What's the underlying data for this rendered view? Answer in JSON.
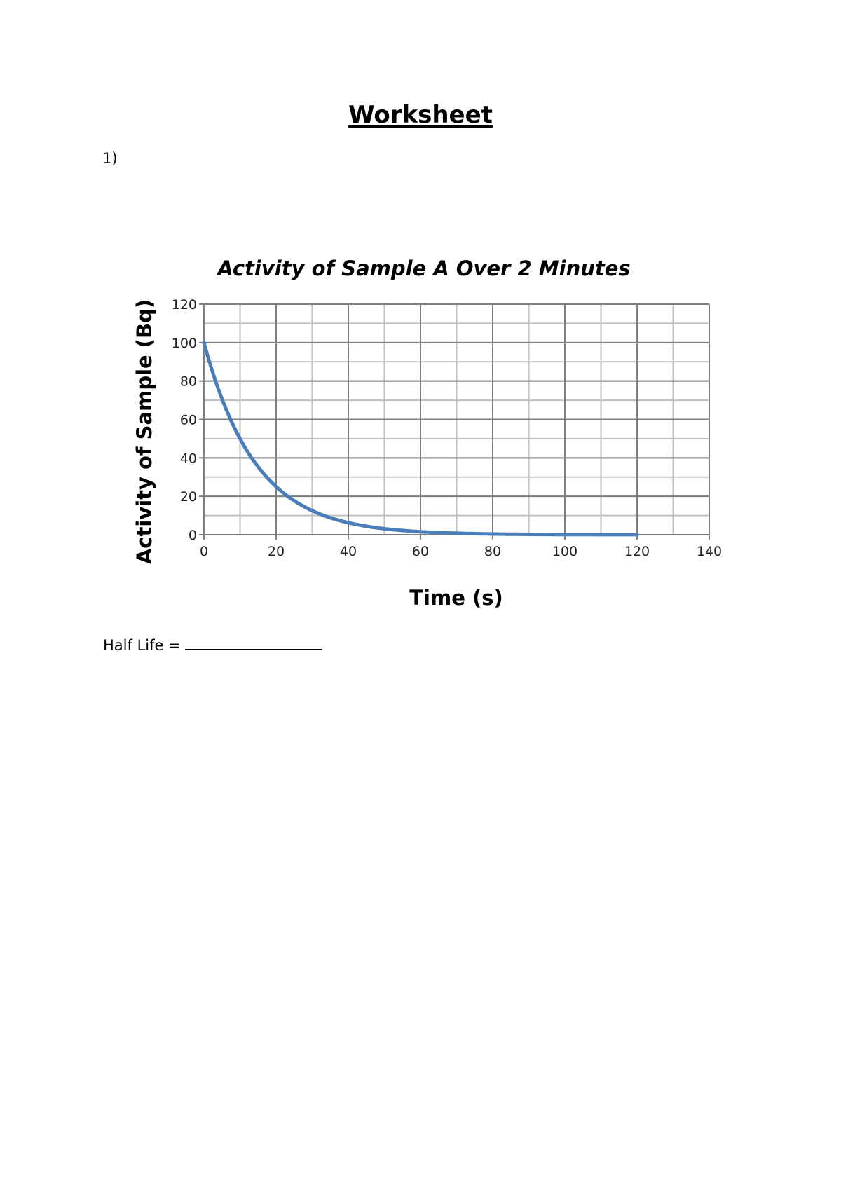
{
  "document": {
    "title": "Worksheet",
    "question_number": "1)",
    "answer_prompt": "Half Life =",
    "answer_value": ""
  },
  "chart_data": {
    "type": "line",
    "title": "Activity of Sample A Over 2 Minutes",
    "xlabel": "Time (s)",
    "ylabel": "Activity of Sample (Bq)",
    "xlim": [
      0,
      140
    ],
    "ylim": [
      0,
      120
    ],
    "x_ticks": [
      0,
      20,
      40,
      60,
      80,
      100,
      120,
      140
    ],
    "y_ticks": [
      0,
      20,
      40,
      60,
      80,
      100,
      120
    ],
    "x_minor_step": 10,
    "y_minor_step": 10,
    "grid": true,
    "legend": null,
    "series": [
      {
        "name": "Sample A",
        "color": "#4a7ebb",
        "x": [
          0,
          5,
          10,
          15,
          20,
          25,
          30,
          35,
          40,
          45,
          50,
          55,
          60,
          70,
          80,
          90,
          100,
          110,
          120
        ],
        "values": [
          100,
          70.7,
          50,
          35.4,
          25,
          17.7,
          12.5,
          8.8,
          6.25,
          4.4,
          3.1,
          2.2,
          1.6,
          0.78,
          0.39,
          0.2,
          0.1,
          0.05,
          0.02
        ]
      }
    ]
  }
}
